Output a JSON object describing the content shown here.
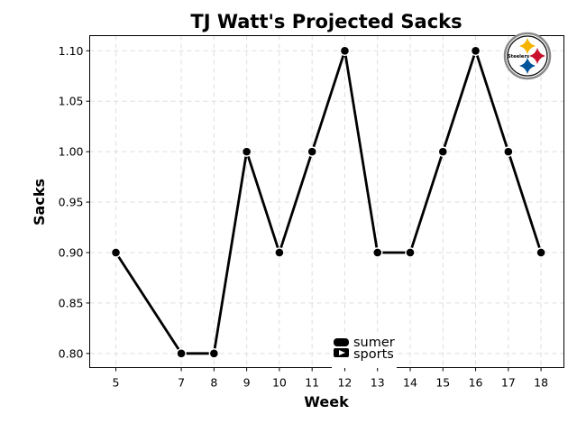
{
  "chart_data": {
    "type": "line",
    "title": "TJ Watt's Projected Sacks",
    "xlabel": "Week",
    "ylabel": "Sacks",
    "x": [
      5,
      7,
      8,
      9,
      10,
      11,
      12,
      13,
      14,
      15,
      16,
      17,
      18
    ],
    "series": [
      {
        "values": [
          0.9,
          0.8,
          0.8,
          1.0,
          0.9,
          1.0,
          1.1,
          0.9,
          0.9,
          1.0,
          1.1,
          1.0,
          0.9
        ]
      }
    ],
    "xticks": [
      "5",
      "7",
      "8",
      "9",
      "10",
      "11",
      "12",
      "13",
      "14",
      "15",
      "16",
      "17",
      "18"
    ],
    "yticks": [
      "0.80",
      "0.85",
      "0.90",
      "0.95",
      "1.00",
      "1.05",
      "1.10"
    ],
    "ytick_values": [
      0.8,
      0.85,
      0.9,
      0.95,
      1.0,
      1.05,
      1.1
    ],
    "xlim": [
      4.2,
      18.7
    ],
    "ylim": [
      0.786,
      1.115
    ],
    "grid": true,
    "line_color": "#000000",
    "marker": "circle"
  },
  "logo": {
    "name": "steelers-logo",
    "text": "Steelers",
    "colors": [
      "#f4b400",
      "#c8102e",
      "#00539b"
    ]
  },
  "watermark": {
    "line1": "sumer",
    "line2": "sports"
  }
}
